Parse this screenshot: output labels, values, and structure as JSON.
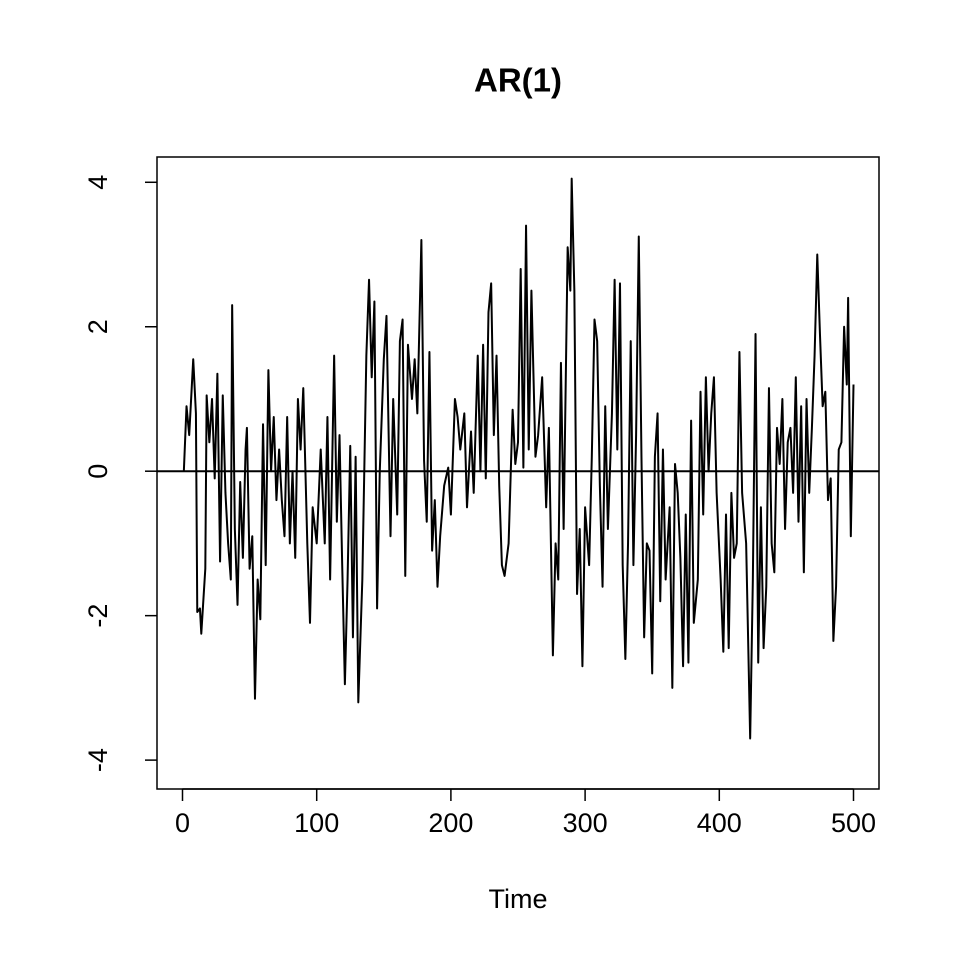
{
  "chart_data": {
    "type": "line",
    "title": "AR(1)",
    "x_label": "Time",
    "x": [
      1,
      3,
      5,
      8,
      10,
      11,
      13,
      14,
      17,
      18,
      20,
      22,
      24,
      26,
      28,
      30,
      32,
      34,
      36,
      37,
      39,
      41,
      43,
      45,
      47,
      48,
      50,
      52,
      54,
      56,
      58,
      60,
      62,
      64,
      66,
      68,
      70,
      72,
      74,
      76,
      78,
      80,
      82,
      84,
      86,
      88,
      90,
      93,
      95,
      97,
      100,
      103,
      106,
      108,
      110,
      113,
      115,
      117,
      119,
      121,
      123,
      125,
      127,
      129,
      131,
      134,
      137,
      139,
      141,
      143,
      145,
      147,
      150,
      152,
      155,
      157,
      160,
      162,
      164,
      166,
      168,
      171,
      173,
      175,
      178,
      180,
      182,
      184,
      186,
      188,
      190,
      192,
      195,
      198,
      200,
      203,
      205,
      207,
      210,
      212,
      215,
      217,
      220,
      222,
      224,
      226,
      228,
      230,
      232,
      234,
      236,
      238,
      240,
      243,
      246,
      248,
      250,
      252,
      254,
      256,
      258,
      260,
      263,
      265,
      268,
      271,
      273,
      276,
      278,
      280,
      282,
      284,
      287,
      289,
      290,
      292,
      294,
      296,
      298,
      300,
      303,
      305,
      307,
      309,
      311,
      313,
      315,
      317,
      320,
      322,
      324,
      326,
      328,
      330,
      332,
      334,
      336,
      338,
      340,
      342,
      344,
      346,
      348,
      350,
      352,
      354,
      356,
      358,
      360,
      363,
      365,
      367,
      369,
      371,
      373,
      375,
      377,
      379,
      381,
      384,
      386,
      388,
      390,
      392,
      394,
      396,
      398,
      401,
      403,
      405,
      407,
      409,
      411,
      413,
      415,
      417,
      420,
      423,
      425,
      427,
      429,
      431,
      433,
      435,
      437,
      439,
      441,
      443,
      445,
      447,
      449,
      451,
      453,
      455,
      457,
      459,
      461,
      463,
      465,
      467,
      469,
      471,
      473,
      475,
      477,
      479,
      481,
      483,
      485,
      487,
      489,
      491,
      493,
      495,
      496,
      498,
      500
    ],
    "values": [
      0.0,
      0.9,
      0.5,
      1.55,
      0.8,
      -1.95,
      -1.9,
      -2.25,
      -1.35,
      1.05,
      0.4,
      1.0,
      -0.1,
      1.35,
      -1.25,
      1.05,
      -0.3,
      -1.0,
      -1.5,
      2.3,
      -0.8,
      -1.85,
      -0.15,
      -1.2,
      0.3,
      0.6,
      -1.35,
      -0.9,
      -3.15,
      -1.5,
      -2.05,
      0.65,
      -1.3,
      1.4,
      0.0,
      0.75,
      -0.4,
      0.3,
      -0.4,
      -0.9,
      0.75,
      -1.0,
      0.0,
      -1.2,
      1.0,
      0.3,
      1.15,
      -1.0,
      -2.1,
      -0.5,
      -1.0,
      0.3,
      -1.0,
      0.75,
      -1.5,
      1.6,
      -0.7,
      0.5,
      -1.3,
      -2.95,
      -1.5,
      0.35,
      -2.3,
      0.2,
      -3.2,
      -1.5,
      1.6,
      2.65,
      1.3,
      2.35,
      -1.9,
      0.0,
      1.55,
      2.15,
      -0.9,
      1.0,
      -0.6,
      1.8,
      2.1,
      -1.45,
      1.75,
      1.0,
      1.55,
      0.8,
      3.2,
      0.15,
      -0.7,
      1.65,
      -1.1,
      -0.4,
      -1.6,
      -0.9,
      -0.2,
      0.05,
      -0.6,
      1.0,
      0.75,
      0.3,
      0.8,
      -0.5,
      0.55,
      -0.3,
      1.6,
      0.0,
      1.75,
      -0.1,
      2.2,
      2.6,
      0.5,
      1.6,
      -0.2,
      -1.3,
      -1.45,
      -1.0,
      0.85,
      0.1,
      0.4,
      2.8,
      0.05,
      3.4,
      0.3,
      2.5,
      0.2,
      0.5,
      1.3,
      -0.5,
      0.6,
      -2.55,
      -1.0,
      -1.5,
      1.5,
      -0.8,
      3.1,
      2.5,
      4.05,
      2.5,
      -1.7,
      -0.8,
      -2.7,
      -0.5,
      -1.3,
      0.2,
      2.1,
      1.8,
      -0.2,
      -1.6,
      0.9,
      -0.8,
      0.8,
      2.65,
      0.3,
      2.6,
      -1.3,
      -2.6,
      -1.0,
      1.8,
      -1.3,
      0.5,
      3.25,
      0.2,
      -2.3,
      -1.0,
      -1.1,
      -2.8,
      0.2,
      0.8,
      -1.8,
      0.3,
      -1.5,
      -0.5,
      -3.0,
      0.1,
      -0.3,
      -1.2,
      -2.7,
      -0.6,
      -2.65,
      0.7,
      -2.1,
      -1.5,
      1.1,
      -0.6,
      1.3,
      0.0,
      0.8,
      1.3,
      -0.3,
      -1.5,
      -2.5,
      -0.6,
      -2.45,
      -0.3,
      -1.2,
      -1.0,
      1.65,
      -0.3,
      -1.0,
      -3.7,
      -1.5,
      1.9,
      -2.65,
      -0.5,
      -2.45,
      -1.6,
      1.15,
      -1.0,
      -1.4,
      0.6,
      0.1,
      1.0,
      -0.8,
      0.4,
      0.6,
      -0.3,
      1.3,
      -0.7,
      0.9,
      -1.4,
      1.0,
      -0.3,
      0.6,
      1.6,
      3.0,
      1.9,
      0.9,
      1.1,
      -0.4,
      -0.1,
      -2.35,
      -1.6,
      0.3,
      0.4,
      2.0,
      1.2,
      2.4,
      -0.9,
      1.2
    ],
    "color": "#000000",
    "hline": 0,
    "xlim": [
      -19,
      519
    ],
    "xticks": [
      0,
      100,
      200,
      300,
      400,
      500
    ],
    "ylim": [
      -4.4,
      4.35
    ],
    "yticks": [
      -4,
      -2,
      0,
      2,
      4
    ]
  }
}
